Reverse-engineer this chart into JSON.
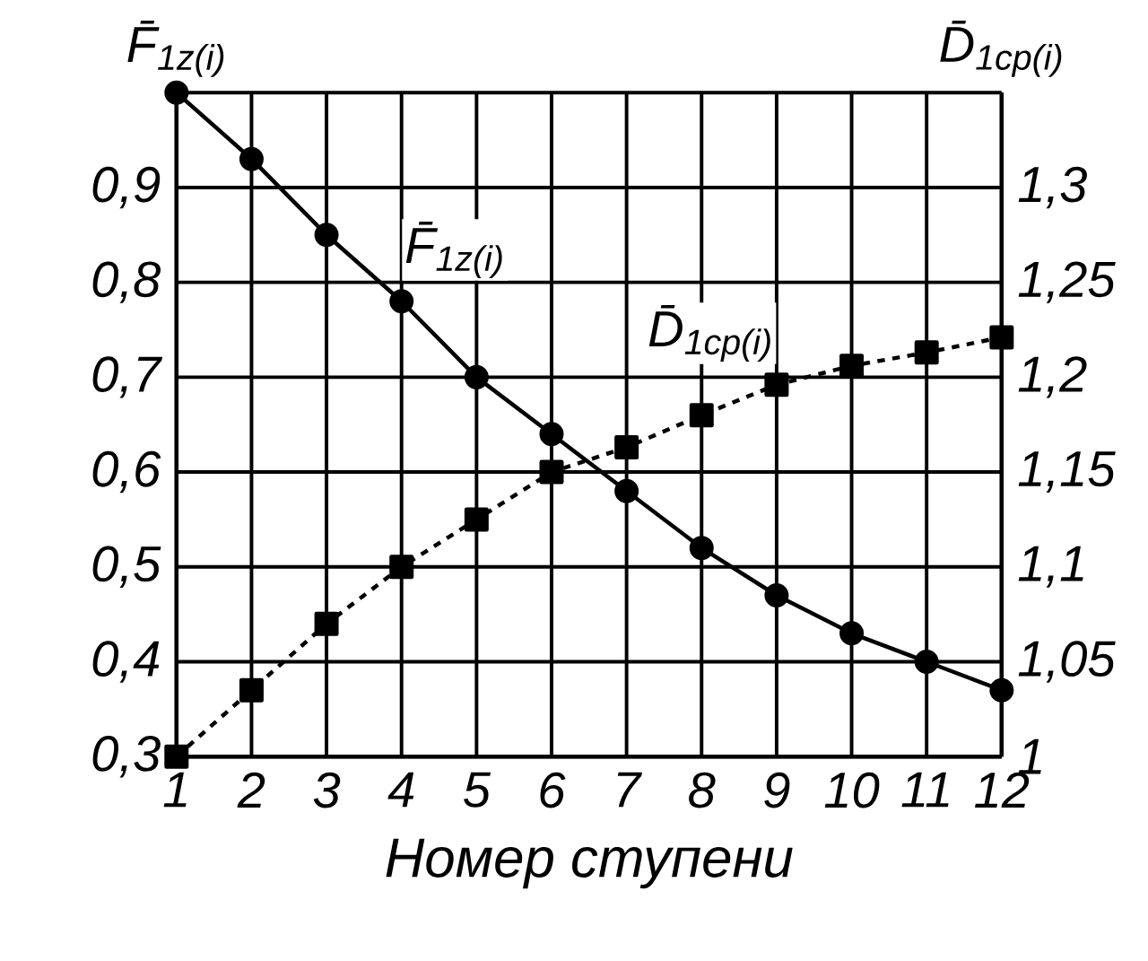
{
  "chart_data": {
    "type": "line",
    "xlabel": "Номер ступени",
    "ylabel": "F̄$_{1z(i)}$",
    "y2label": "D̄$_{1cp(i)}$",
    "x": [
      1,
      2,
      3,
      4,
      5,
      6,
      7,
      8,
      9,
      10,
      11,
      12
    ],
    "series": [
      {
        "name": "F̄$_{1z(i)}$",
        "color": "#000000",
        "marker": "circle",
        "line_style": "solid",
        "values": [
          1.0,
          0.93,
          0.85,
          0.78,
          0.7,
          0.64,
          0.58,
          0.52,
          0.47,
          0.43,
          0.4,
          0.37
        ]
      },
      {
        "name": "D̄$_{1cp(i)}$",
        "color": "#000000",
        "marker": "square",
        "line_style": "dashed",
        "axis": "y2",
        "values": [
          1.0,
          1.035,
          1.07,
          1.1,
          1.125,
          1.15,
          1.163,
          1.18,
          1.196,
          1.206,
          1.213,
          1.221
        ]
      }
    ],
    "xlim": [
      1,
      12
    ],
    "xticks": [
      1,
      2,
      3,
      4,
      5,
      6,
      7,
      8,
      9,
      10,
      11,
      12
    ],
    "ylim": [
      0.3,
      1.0
    ],
    "yticks": [
      {
        "value": 0.3,
        "label": "0,3"
      },
      {
        "value": 0.4,
        "label": "0,4"
      },
      {
        "value": 0.5,
        "label": "0,5"
      },
      {
        "value": 0.6,
        "label": "0,6"
      },
      {
        "value": 0.7,
        "label": "0,7"
      },
      {
        "value": 0.8,
        "label": "0,8"
      },
      {
        "value": 0.9,
        "label": "0,9"
      },
      {
        "value": 1.0,
        "label": null
      }
    ],
    "y2lim": [
      1,
      1.35
    ],
    "y2ticks": [
      1,
      {
        "value": 1.05,
        "label": "1,05"
      },
      {
        "value": 1.1,
        "label": "1,1"
      },
      {
        "value": 1.15,
        "label": "1,15"
      },
      {
        "value": 1.2,
        "label": "1,2"
      },
      {
        "value": 1.25,
        "label": "1,25"
      },
      {
        "value": 1.3,
        "label": "1,3"
      },
      {
        "value": 1.35,
        "label": null
      }
    ],
    "grid": true
  }
}
